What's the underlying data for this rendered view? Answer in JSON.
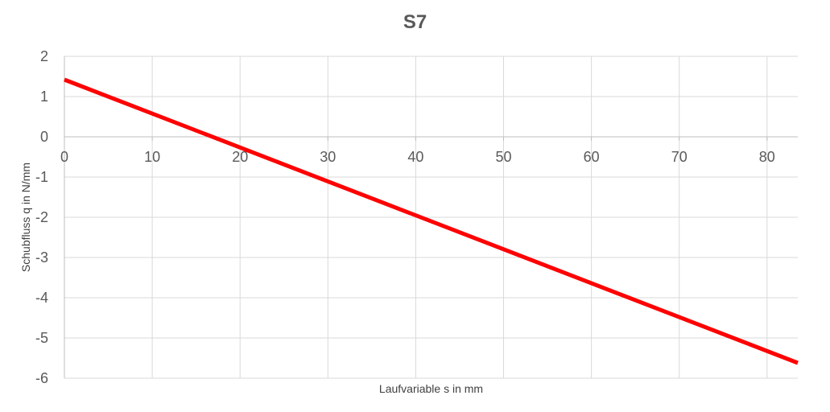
{
  "chart_data": {
    "type": "line",
    "title": "S7",
    "xlabel": "Laufvariable s in mm",
    "ylabel": "Schubfluss q in N/mm",
    "xlim": [
      0,
      83.5
    ],
    "ylim": [
      -6,
      2
    ],
    "xticks": [
      0,
      10,
      20,
      30,
      40,
      50,
      60,
      70,
      80
    ],
    "yticks": [
      2,
      1,
      0,
      -1,
      -2,
      -3,
      -4,
      -5,
      -6
    ],
    "grid": true,
    "series": [
      {
        "color": "#ff0000",
        "x": [
          0,
          83.5
        ],
        "y": [
          1.42,
          -5.62
        ]
      }
    ]
  }
}
